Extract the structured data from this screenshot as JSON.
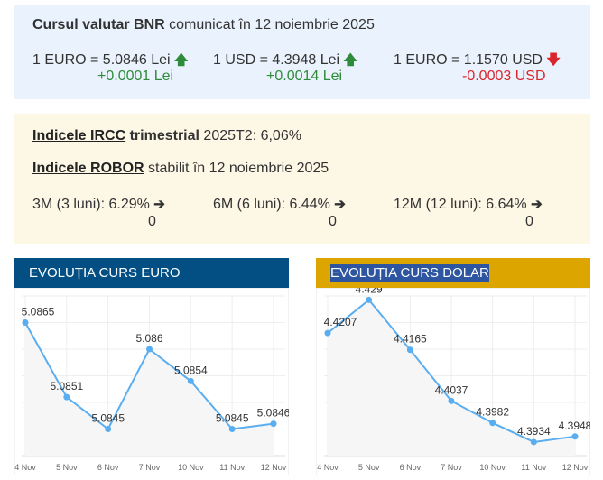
{
  "bnr": {
    "title_bold": "Cursul valutar BNR",
    "title_rest": "comunicat în 12 noiembrie 2025",
    "rates": [
      {
        "label": "1 EURO = 5.0846 Lei",
        "change": "+0.0001 Lei",
        "direction": "up",
        "icon": "arrow-up-icon"
      },
      {
        "label": "1 USD = 4.3948 Lei",
        "change": "+0.0014 Lei",
        "direction": "up",
        "icon": "arrow-up-icon"
      },
      {
        "label": "1 EURO = 1.1570 USD",
        "change": "-0.0003 USD",
        "direction": "down",
        "icon": "arrow-down-icon"
      }
    ]
  },
  "indices": {
    "ircc_link": "Indicele IRCC",
    "ircc_bold": "trimestrial",
    "ircc_value": "2025T2: 6,06%",
    "robor_link": "Indicele ROBOR",
    "robor_rest": "stabilit în 12 noiembrie 2025",
    "robor": [
      {
        "label": "3M (3 luni): 6.29%",
        "change": "0"
      },
      {
        "label": "6M (6 luni): 6.44%",
        "change": "0"
      },
      {
        "label": "12M (12 luni): 6.64%",
        "change": "0"
      }
    ]
  },
  "colors": {
    "euro_header": "#034f84",
    "dollar_header": "#dca500",
    "line": "#5aaef0",
    "up": "#2e8b3a",
    "down": "#d9262c"
  },
  "chart_data": [
    {
      "type": "line",
      "title": "EVOLUȚIA CURS EURO",
      "categories": [
        "4 Nov",
        "5 Nov",
        "6 Nov",
        "7 Nov",
        "10 Nov",
        "11 Nov",
        "12 Nov"
      ],
      "values": [
        5.0865,
        5.0851,
        5.0845,
        5.086,
        5.0854,
        5.0845,
        5.0846
      ],
      "ylim": [
        5.084,
        5.087
      ],
      "grid": true
    },
    {
      "type": "line",
      "title": "EVOLUȚIA CURS DOLAR",
      "categories": [
        "4 Nov",
        "5 Nov",
        "6 Nov",
        "7 Nov",
        "10 Nov",
        "11 Nov",
        "12 Nov"
      ],
      "values": [
        4.4207,
        4.429,
        4.4165,
        4.4037,
        4.3982,
        4.3934,
        4.3948
      ],
      "ylim": [
        4.39,
        4.43
      ],
      "grid": true
    }
  ]
}
